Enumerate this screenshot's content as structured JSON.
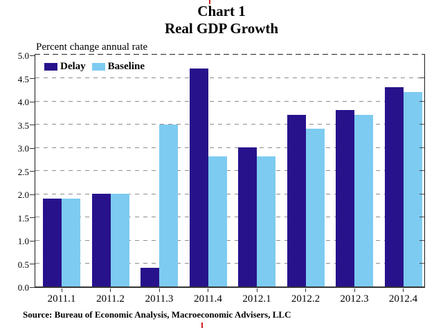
{
  "page": {
    "title_line1": "Chart 1",
    "title_line2": "Real GDP Growth"
  },
  "colors": {
    "delay_bar": "#28128C",
    "baseline_bar": "#7DCBF1",
    "gridline": "#8c8c8c",
    "axis": "#1a1a1a",
    "cursor_artifact": "#cc2222"
  },
  "chart_data": {
    "type": "bar",
    "title": "Chart 1",
    "subtitle": "Real GDP Growth",
    "axis_caption": "Percent change annual rate",
    "categories": [
      "2011.1",
      "2011.2",
      "2011.3",
      "2011.4",
      "2012.1",
      "2012.2",
      "2012.3",
      "2012.4"
    ],
    "series": [
      {
        "name": "Delay",
        "color": "#28128C",
        "values": [
          1.9,
          2.0,
          0.4,
          4.7,
          3.0,
          3.7,
          3.8,
          4.3
        ]
      },
      {
        "name": "Baseline",
        "color": "#7DCBF1",
        "values": [
          1.9,
          2.0,
          3.5,
          2.8,
          2.8,
          3.4,
          3.7,
          4.2
        ]
      }
    ],
    "ylim": [
      0,
      5
    ],
    "ytick_step": 0.5,
    "ytick_labels": [
      "0.0",
      "0.5",
      "1.0",
      "1.5",
      "2.0",
      "2.5",
      "3.0",
      "3.5",
      "4.0",
      "4.5",
      "5.0"
    ],
    "grid": "dashed horizontal gridlines at every 0.5",
    "legend_position": "top-left inside plot",
    "source": "Source: Bureau of Economic Analysis, Macroeconomic Advisers, LLC"
  }
}
